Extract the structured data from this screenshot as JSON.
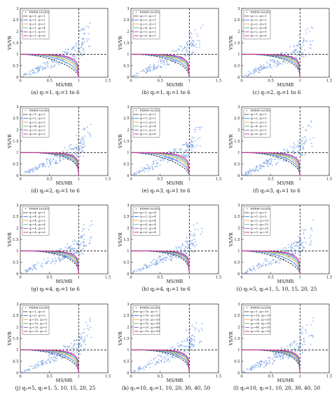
{
  "figure": {
    "xlabel": "MS/MR",
    "ylabel": "VS/VR",
    "xticks": [
      "0",
      "0.5",
      "1",
      "1.5"
    ],
    "yticks": [
      "0",
      "0.5",
      "1",
      "1.5",
      "2",
      "2.5",
      "3"
    ],
    "xlim": [
      0,
      1.5
    ],
    "ylim": [
      0,
      3
    ],
    "reference_lines": {
      "vertical_x": 1,
      "horizontal_y": 1
    },
    "series_colors": [
      "#000000",
      "#2b7fff",
      "#e8a33d",
      "#3fbf7f",
      "#8a4fd6",
      "#d9208f"
    ],
    "scatter_color": "#7ea6e8"
  },
  "chart_data": [
    {
      "type": "scatter",
      "caption": "(a) q₁=1, q₂=1 to 6",
      "legend": [
        "PERM-results",
        "q₁=1, q₂=1",
        "q₁=1, q₂=2",
        "q₁=1, q₂=3",
        "q₁=1, q₂=4",
        "q₁=1, q₂=5",
        "q₁=1, q₂=6"
      ]
    },
    {
      "type": "scatter",
      "caption": "(b) q₂=1, q₁=1 to 6",
      "legend": [
        "PERM-results",
        "q₁=1, q₂=1",
        "q₁=2, q₂=1",
        "q₁=3, q₂=1",
        "q₁=4, q₂=1",
        "q₁=5, q₂=1",
        "q₁=6, q₂=1"
      ]
    },
    {
      "type": "scatter",
      "caption": "(c) q₁=2, q₂=1 to 6",
      "legend": [
        "PERM-results",
        "q₁=2, q₂=1",
        "q₁=2, q₂=2",
        "q₁=2, q₂=3",
        "q₁=2, q₂=4",
        "q₁=2, q₂=5",
        "q₁=2, q₂=6"
      ]
    },
    {
      "type": "scatter",
      "caption": "(d) q₂=2, q₁=1 to 6",
      "legend": [
        "PERM-results",
        "q₁=1, q₂=2",
        "q₁=2, q₂=2",
        "q₁=3, q₂=2",
        "q₁=4, q₂=2",
        "q₁=5, q₂=2",
        "q₁=6, q₂=2"
      ]
    },
    {
      "type": "scatter",
      "caption": "(e) q₁=3, q₂=1 to 6",
      "legend": [
        "PERM-results",
        "q₁=3, q₂=1",
        "q₁=3, q₂=2",
        "q₁=3, q₂=3",
        "q₁=3, q₂=4",
        "q₁=3, q₂=5",
        "q₁=3, q₂=6"
      ]
    },
    {
      "type": "scatter",
      "caption": "(f) q₂=3, q₁=1 to 6",
      "legend": [
        "PERM-results",
        "q₁=1, q₂=3",
        "q₁=2, q₂=3",
        "q₁=3, q₂=3",
        "q₁=4, q₂=3",
        "q₁=5, q₂=3",
        "q₁=6, q₂=3"
      ]
    },
    {
      "type": "scatter",
      "caption": "(g) q₁=4, q₂=1 to 6",
      "legend": [
        "PERM-results",
        "q₁=4, q₂=1",
        "q₁=4, q₂=2",
        "q₁=4, q₂=3",
        "q₁=4, q₂=4",
        "q₁=4, q₂=5",
        "q₁=4, q₂=6"
      ]
    },
    {
      "type": "scatter",
      "caption": "(h) q₂=4, q₁=1 to 6",
      "legend": [
        "PERM-results",
        "q₁=1, q₂=4",
        "q₁=2, q₂=4",
        "q₁=3, q₂=4",
        "q₁=4, q₂=4",
        "q₁=5, q₂=4",
        "q₁=6, q₂=4"
      ]
    },
    {
      "type": "scatter",
      "caption": "(i) q₁=5, q₂=1, 5, 10, 15, 20, 25",
      "legend": [
        "PERM-results",
        "q₁=5, q₂=1",
        "q₁=5, q₂=5",
        "q₁=5, q₂=10",
        "q₁=5, q₂=15",
        "q₁=5, q₂=20",
        "q₁=5, q₂=25"
      ]
    },
    {
      "type": "scatter",
      "caption": "(j) q₂=5, q₁=1, 5, 10, 15, 20, 25",
      "legend": [
        "PERM-results",
        "q₁=1, q₂=5",
        "q₁=5, q₂=5",
        "q₁=10, q₂=5",
        "q₁=15, q₂=5",
        "q₁=20, q₂=5",
        "q₁=25, q₂=5"
      ]
    },
    {
      "type": "scatter",
      "caption": "(k) q₁=10, q₂=1, 10, 20, 30, 40, 50",
      "legend": [
        "PERM-results",
        "q₁=10, q₂=1",
        "q₁=10, q₂=10",
        "q₁=10, q₂=20",
        "q₁=10, q₂=30",
        "q₁=10, q₂=40",
        "q₁=10, q₂=50"
      ]
    },
    {
      "type": "scatter",
      "caption": "(l) q₂=10, q₁=1, 10, 20, 30, 40, 50",
      "legend": [
        "PERM-results",
        "q₁=1, q₂=10",
        "q₁=10, q₂=10",
        "q₁=20, q₂=10",
        "q₁=30, q₂=10",
        "q₁=40, q₂=10",
        "q₁=50, q₂=10"
      ]
    }
  ]
}
